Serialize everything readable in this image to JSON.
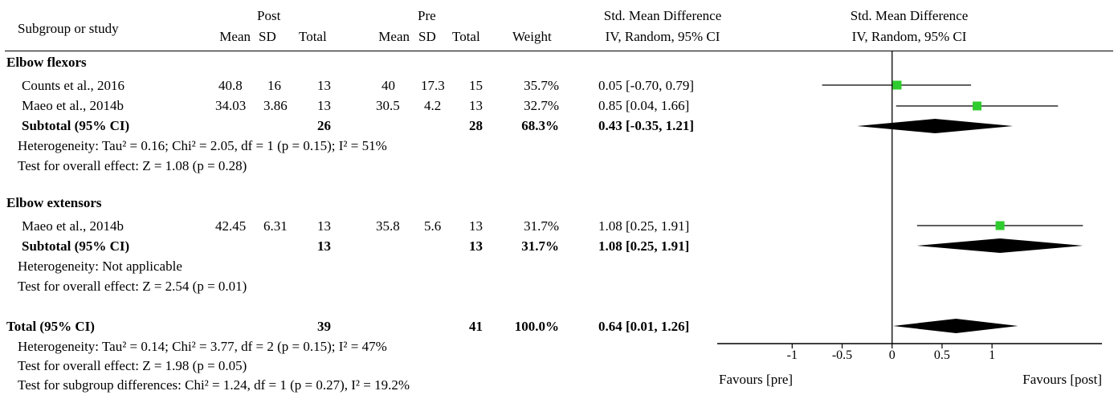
{
  "header": {
    "study_col": "Subgroup or study",
    "post_group": "Post",
    "pre_group": "Pre",
    "mean": "Mean",
    "sd": "SD",
    "total": "Total",
    "weight": "Weight",
    "smd_title": "Std. Mean Difference",
    "smd_method": "IV, Random, 95% CI",
    "plot_title": "Std. Mean Difference",
    "plot_method": "IV, Random, 95% CI"
  },
  "groups": [
    {
      "name": "Elbow flexors",
      "studies": [
        {
          "study": "Counts et al., 2016",
          "post_mean": "40.8",
          "post_sd": "16",
          "post_total": "13",
          "pre_mean": "40",
          "pre_sd": "17.3",
          "pre_total": "15",
          "weight": "35.7%",
          "ci_text": "0.05 [-0.70, 0.79]"
        },
        {
          "study": "Maeo et al., 2014b",
          "post_mean": "34.03",
          "post_sd": "3.86",
          "post_total": "13",
          "pre_mean": "30.5",
          "pre_sd": "4.2",
          "pre_total": "13",
          "weight": "32.7%",
          "ci_text": "0.85 [0.04, 1.66]"
        }
      ],
      "subtotal": {
        "label": "Subtotal (95% CI)",
        "post_total": "26",
        "pre_total": "28",
        "weight": "68.3%",
        "ci_text": "0.43 [-0.35, 1.21]"
      },
      "heterogeneity": "Heterogeneity: Tau² = 0.16; Chi² = 2.05, df = 1 (p = 0.15); I² = 51%",
      "overall_effect": "Test for overall effect: Z = 1.08 (p = 0.28)"
    },
    {
      "name": "Elbow extensors",
      "studies": [
        {
          "study": "Maeo et al., 2014b",
          "post_mean": "42.45",
          "post_sd": "6.31",
          "post_total": "13",
          "pre_mean": "35.8",
          "pre_sd": "5.6",
          "pre_total": "13",
          "weight": "31.7%",
          "ci_text": "1.08 [0.25, 1.91]"
        }
      ],
      "subtotal": {
        "label": "Subtotal (95% CI)",
        "post_total": "13",
        "pre_total": "13",
        "weight": "31.7%",
        "ci_text": "1.08 [0.25, 1.91]"
      },
      "heterogeneity": "Heterogeneity: Not applicable",
      "overall_effect": "Test for overall effect: Z = 2.54 (p = 0.01)"
    }
  ],
  "total": {
    "label": "Total (95% CI)",
    "post_total": "39",
    "pre_total": "41",
    "weight": "100.0%",
    "ci_text": "0.64 [0.01, 1.26]",
    "heterogeneity": "Heterogeneity: Tau² = 0.14; Chi² = 3.77, df = 2 (p = 0.15); I² = 47%",
    "overall_effect": "Test for overall effect: Z = 1.98 (p = 0.05)",
    "subgroup_diff": "Test for subgroup differences: Chi² = 1.24, df = 1 (p = 0.27), I² = 19.2%"
  },
  "axis": {
    "favours_left": "Favours [pre]",
    "favours_right": "Favours [post]"
  },
  "colors": {
    "marker": "#2ecc2e",
    "line": "#000000",
    "diamond": "#000000"
  },
  "chart_data": {
    "type": "forest",
    "xlim": [
      -1.75,
      2.1
    ],
    "ticks": [
      -1,
      -0.5,
      0,
      0.5,
      1
    ],
    "tick_labels": [
      "-1",
      "-0.5",
      "0",
      "0.5",
      "1"
    ],
    "studies": [
      {
        "label": "Counts et al., 2016",
        "group": "Elbow flexors",
        "est": 0.05,
        "lo": -0.7,
        "hi": 0.79
      },
      {
        "label": "Maeo et al., 2014b",
        "group": "Elbow flexors",
        "est": 0.85,
        "lo": 0.04,
        "hi": 1.66
      },
      {
        "label": "Maeo et al., 2014b",
        "group": "Elbow extensors",
        "est": 1.08,
        "lo": 0.25,
        "hi": 1.91
      }
    ],
    "summaries": [
      {
        "label": "Subtotal (95% CI)",
        "group": "Elbow flexors",
        "est": 0.43,
        "lo": -0.35,
        "hi": 1.21
      },
      {
        "label": "Subtotal (95% CI)",
        "group": "Elbow extensors",
        "est": 1.08,
        "lo": 0.25,
        "hi": 1.91
      },
      {
        "label": "Total (95% CI)",
        "group": "Total",
        "est": 0.64,
        "lo": 0.01,
        "hi": 1.26
      }
    ]
  }
}
